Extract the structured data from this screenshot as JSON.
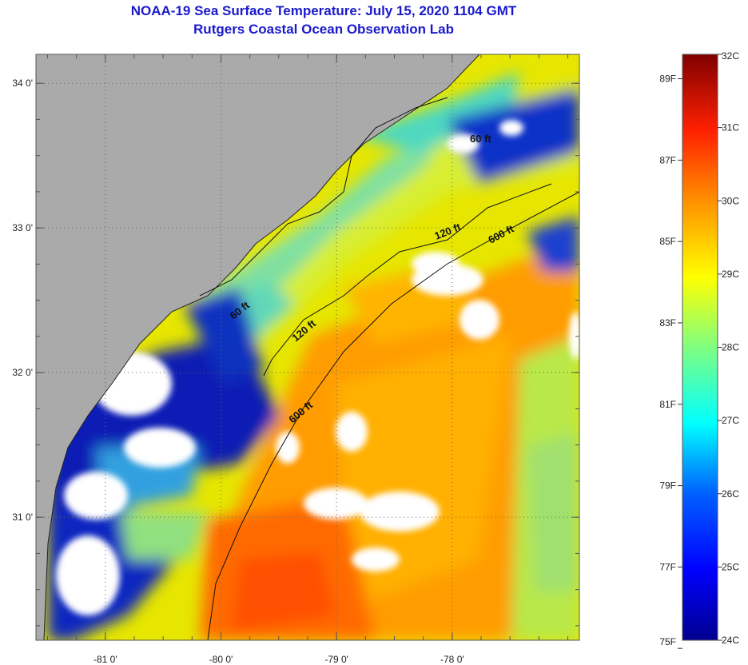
{
  "header": {
    "title": "NOAA-19 Sea Surface Temperature:  July 15, 2020 1104 GMT",
    "subtitle": "Rutgers Coastal Ocean Observation Lab"
  },
  "map": {
    "lon_ticks": [
      {
        "label": "-81 0'",
        "lon": -81
      },
      {
        "label": "-80 0'",
        "lon": -80
      },
      {
        "label": "-79 0'",
        "lon": -79
      },
      {
        "label": "-78 0'",
        "lon": -78
      }
    ],
    "lat_ticks": [
      {
        "label": "34 0'",
        "lat": 34
      },
      {
        "label": "33 0'",
        "lat": 33
      },
      {
        "label": "32 0'",
        "lat": 32
      },
      {
        "label": "31 0'",
        "lat": 31
      }
    ],
    "lon_range": [
      -81.6,
      -76.9
    ],
    "lat_range": [
      30.15,
      34.2
    ],
    "contour_labels": [
      "60 ft",
      "120 ft",
      "600 ft",
      "60 ft",
      "120 ft",
      "600 ft"
    ],
    "colors": {
      "land": "#aaaaaa",
      "cloud": "#ffffff"
    }
  },
  "colorbar": {
    "celsius": [
      "32C",
      "31C",
      "30C",
      "29C",
      "28C",
      "27C",
      "26C",
      "25C",
      "24C"
    ],
    "fahrenheit": [
      "89F",
      "87F",
      "85F",
      "83F",
      "81F",
      "79F",
      "77F",
      "75F"
    ],
    "range_c": [
      24,
      32
    ]
  }
}
